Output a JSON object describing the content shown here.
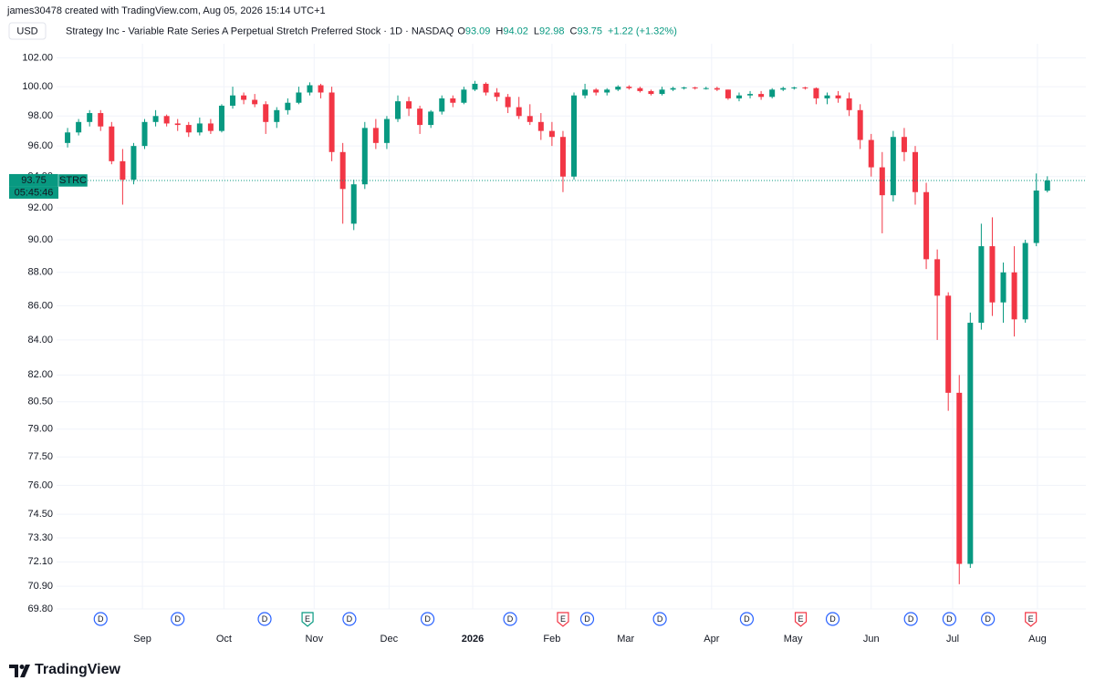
{
  "chart_data": {
    "type": "candlestick",
    "credit": "james30478 created with TradingView.com, Aug 05, 2026 15:14 UTC+1",
    "currency": "USD",
    "title": "Strategy Inc - Variable Rate Series A Perpetual Stretch Preferred Stock · 1D · NASDAQ",
    "ohlc_keys": [
      "O",
      "H",
      "L",
      "C"
    ],
    "change": "+1.22 (+1.32%)",
    "symbol": "STRC",
    "countdown": "05:45:46",
    "brand": "TradingView",
    "log_scale": true,
    "grid": true,
    "up_color": "#089981",
    "down_color": "#f23645",
    "ylim": [
      69.8,
      103
    ],
    "xlim": [
      -1,
      92.5
    ],
    "yticks": [
      {
        "value": 102,
        "label": "102.00"
      },
      {
        "value": 100,
        "label": "100.00"
      },
      {
        "value": 98,
        "label": "98.00"
      },
      {
        "value": 96,
        "label": "96.00"
      },
      {
        "value": 94,
        "label": "94.00"
      },
      {
        "value": 92,
        "label": "92.00"
      },
      {
        "value": 90,
        "label": "90.00"
      },
      {
        "value": 88,
        "label": "88.00"
      },
      {
        "value": 86,
        "label": "86.00"
      },
      {
        "value": 84,
        "label": "84.00"
      },
      {
        "value": 82,
        "label": "82.00"
      },
      {
        "value": 80.5,
        "label": "80.50"
      },
      {
        "value": 79,
        "label": "79.00"
      },
      {
        "value": 77.5,
        "label": "77.50"
      },
      {
        "value": 76,
        "label": "76.00"
      },
      {
        "value": 74.5,
        "label": "74.50"
      },
      {
        "value": 73.3,
        "label": "73.30"
      },
      {
        "value": 72.1,
        "label": "72.10"
      },
      {
        "value": 70.9,
        "label": "70.90"
      },
      {
        "value": 69.8,
        "label": "69.80"
      }
    ],
    "xticks": [
      {
        "value": 6.8,
        "label": "Sep"
      },
      {
        "value": 14.2,
        "label": "Oct"
      },
      {
        "value": 22.4,
        "label": "Nov"
      },
      {
        "value": 29.2,
        "label": "Dec"
      },
      {
        "value": 36.8,
        "label": "2026"
      },
      {
        "value": 44,
        "label": "Feb"
      },
      {
        "value": 50.7,
        "label": "Mar"
      },
      {
        "value": 58.5,
        "label": "Apr"
      },
      {
        "value": 65.9,
        "label": "May"
      },
      {
        "value": 73,
        "label": "Jun"
      },
      {
        "value": 80.4,
        "label": "Jul"
      },
      {
        "value": 88.1,
        "label": "Aug"
      }
    ],
    "events": [
      {
        "label": "D",
        "x": 3.0,
        "color": "#2962ff"
      },
      {
        "label": "D",
        "x": 10.0,
        "color": "#2962ff"
      },
      {
        "label": "D",
        "x": 17.9,
        "color": "#2962ff"
      },
      {
        "label": "E",
        "x": 21.8,
        "color": "#089981"
      },
      {
        "label": "D",
        "x": 25.6,
        "color": "#2962ff"
      },
      {
        "label": "D",
        "x": 32.7,
        "color": "#2962ff"
      },
      {
        "label": "D",
        "x": 40.2,
        "color": "#2962ff"
      },
      {
        "label": "E",
        "x": 45.0,
        "color": "#f23645"
      },
      {
        "label": "D",
        "x": 47.2,
        "color": "#2962ff"
      },
      {
        "label": "D",
        "x": 53.8,
        "color": "#2962ff"
      },
      {
        "label": "D",
        "x": 61.7,
        "color": "#2962ff"
      },
      {
        "label": "E",
        "x": 66.6,
        "color": "#f23645"
      },
      {
        "label": "D",
        "x": 69.5,
        "color": "#2962ff"
      },
      {
        "label": "D",
        "x": 76.6,
        "color": "#2962ff"
      },
      {
        "label": "D",
        "x": 80.1,
        "color": "#2962ff"
      },
      {
        "label": "D",
        "x": 83.6,
        "color": "#2962ff"
      },
      {
        "label": "E",
        "x": 87.5,
        "color": "#f23645"
      }
    ],
    "open": [
      96.2,
      96.9,
      97.6,
      98.2,
      97.3,
      95.0,
      93.8,
      96.0,
      97.6,
      98.0,
      97.5,
      97.4,
      96.9,
      97.5,
      97.0,
      98.7,
      99.4,
      99.1,
      98.8,
      97.6,
      98.4,
      98.9,
      99.6,
      100.1,
      99.6,
      95.6,
      91.0,
      93.5,
      97.2,
      96.2,
      97.8,
      99.0,
      98.5,
      97.4,
      98.3,
      99.2,
      98.9,
      99.8,
      100.2,
      99.6,
      99.3,
      98.6,
      98.0,
      97.6,
      97.0,
      96.6,
      94.0,
      99.4,
      99.8,
      99.6,
      99.8,
      100.0,
      99.9,
      99.7,
      99.5,
      99.8,
      99.9,
      99.95,
      99.9,
      99.9,
      99.8,
      99.2,
      99.4,
      99.5,
      99.3,
      99.8,
      99.9,
      99.95,
      99.9,
      99.2,
      99.4,
      99.2,
      98.4,
      96.4,
      94.6,
      92.8,
      96.6,
      95.6,
      93.0,
      88.8,
      86.6,
      81.0,
      72.0,
      85.0,
      89.6,
      86.2,
      88.0,
      85.2,
      89.8,
      93.09
    ],
    "high": [
      97.2,
      97.8,
      98.4,
      98.4,
      97.6,
      95.8,
      96.2,
      97.8,
      98.4,
      98.1,
      97.8,
      97.6,
      97.9,
      97.8,
      98.8,
      100.0,
      99.6,
      99.5,
      99.0,
      98.6,
      99.2,
      100.0,
      100.3,
      100.2,
      100.0,
      96.2,
      93.8,
      97.6,
      97.8,
      98.0,
      99.4,
      99.3,
      98.7,
      98.4,
      99.4,
      99.4,
      100.0,
      100.4,
      100.3,
      99.9,
      99.5,
      99.3,
      98.8,
      98.2,
      97.6,
      97.0,
      99.6,
      100.2,
      99.9,
      99.9,
      100.1,
      100.1,
      100.0,
      99.8,
      100.0,
      100.0,
      100.0,
      100.0,
      100.0,
      100.0,
      99.8,
      99.6,
      99.7,
      99.7,
      99.9,
      100.0,
      100.0,
      100.0,
      99.95,
      99.6,
      99.7,
      99.6,
      98.8,
      96.8,
      95.6,
      97.0,
      97.2,
      96.0,
      93.6,
      89.4,
      86.8,
      82.0,
      85.6,
      91.0,
      91.4,
      88.6,
      89.6,
      90.0,
      94.2,
      94.02
    ],
    "low": [
      95.9,
      96.7,
      97.3,
      97.0,
      94.8,
      92.2,
      93.5,
      95.8,
      97.3,
      97.3,
      97.0,
      96.6,
      96.7,
      96.8,
      96.9,
      98.5,
      98.8,
      98.6,
      96.8,
      97.2,
      98.1,
      98.8,
      99.4,
      99.2,
      95.0,
      91.0,
      90.6,
      93.2,
      95.8,
      95.8,
      97.6,
      98.0,
      96.8,
      97.2,
      98.1,
      98.6,
      98.8,
      99.7,
      99.4,
      99.0,
      98.2,
      97.8,
      97.4,
      96.4,
      96.0,
      93.0,
      93.8,
      99.2,
      99.4,
      99.4,
      99.7,
      99.8,
      99.6,
      99.4,
      99.4,
      99.7,
      99.8,
      99.8,
      99.8,
      99.7,
      99.1,
      99.0,
      99.2,
      99.1,
      99.2,
      99.7,
      99.8,
      99.8,
      98.8,
      98.8,
      98.9,
      98.0,
      95.8,
      94.0,
      90.4,
      92.4,
      95.0,
      92.2,
      88.2,
      84.0,
      80.0,
      71.0,
      71.8,
      84.6,
      85.4,
      85.0,
      84.2,
      85.0,
      89.6,
      92.98
    ],
    "close": [
      96.9,
      97.6,
      98.2,
      97.3,
      95.0,
      93.8,
      96.0,
      97.6,
      98.0,
      97.5,
      97.4,
      96.9,
      97.5,
      97.0,
      98.7,
      99.4,
      99.1,
      98.8,
      97.6,
      98.4,
      98.9,
      99.6,
      100.1,
      99.6,
      95.6,
      93.2,
      93.5,
      97.2,
      96.2,
      97.8,
      99.0,
      98.5,
      97.4,
      98.3,
      99.2,
      98.9,
      99.8,
      100.2,
      99.6,
      99.3,
      98.6,
      98.0,
      97.6,
      97.0,
      96.6,
      94.0,
      99.4,
      99.8,
      99.6,
      99.8,
      100.0,
      99.9,
      99.7,
      99.5,
      99.8,
      99.9,
      99.95,
      99.9,
      99.9,
      99.8,
      99.2,
      99.4,
      99.5,
      99.3,
      99.8,
      99.9,
      99.95,
      99.9,
      99.2,
      99.4,
      99.2,
      98.4,
      96.4,
      94.6,
      92.8,
      96.6,
      95.6,
      93.0,
      88.8,
      86.6,
      81.0,
      72.0,
      85.0,
      89.6,
      86.2,
      88.0,
      85.2,
      89.8,
      93.1,
      93.75
    ]
  }
}
